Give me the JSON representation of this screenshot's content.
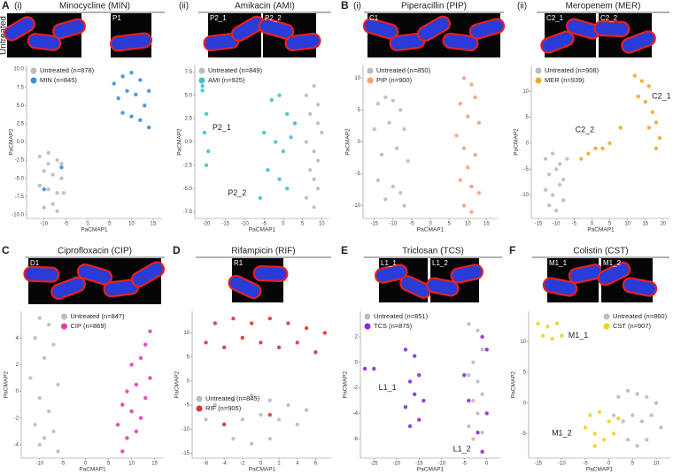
{
  "chart_data": [
    {
      "type": "scatter",
      "label": "A",
      "sublabel": "(i)",
      "title": "Minocycline (MIN)",
      "row_label": "Untreated",
      "images": [
        null,
        "P1"
      ],
      "xlabel": "PaCMAP1",
      "ylabel": "PaCMAP2",
      "legend": "upper left",
      "xlim": [
        -14,
        17
      ],
      "ylim": [
        -10.5,
        10.5
      ],
      "xticks": [
        -10,
        -5,
        0,
        5,
        10,
        15
      ],
      "yticks": [
        {
          "value": 10,
          "label": "10.0"
        },
        7.5,
        {
          "value": 5,
          "label": "5.0"
        },
        2.5,
        {
          "value": 0,
          "label": "0.0"
        },
        -2.5,
        {
          "value": -5,
          "label": "-5.0"
        },
        -7.5,
        {
          "value": -10,
          "label": "-10.0"
        }
      ],
      "series": [
        {
          "name": "Untreated (n=878)",
          "color": "#bdbdbd",
          "x": [
            -11,
            -9,
            -7,
            -6,
            -10,
            -8,
            -6,
            -11,
            -9,
            -7,
            -5.5,
            -8,
            -10,
            -7,
            -9
          ],
          "y": [
            -2,
            -1.5,
            -2.5,
            -3,
            -4,
            -4.5,
            -5,
            -6,
            -6.5,
            -7,
            -7,
            -8.5,
            -9,
            -9.5,
            -3
          ]
        },
        {
          "name": "MIN (n=845)",
          "color": "#3a8fde",
          "x": [
            6,
            8,
            10,
            12,
            14,
            7,
            9,
            11,
            13,
            8,
            10,
            12,
            14,
            -10,
            -6
          ],
          "y": [
            8,
            9,
            9.5,
            8.5,
            7,
            6,
            7,
            6.5,
            5,
            4,
            3.5,
            3,
            2,
            -6.5,
            -3.5
          ]
        }
      ]
    },
    {
      "type": "scatter",
      "sublabel": "(ii)",
      "title": "Amikacin (AMI)",
      "images": [
        "P2_1",
        "P2_2"
      ],
      "xlabel": "PaCMAP1",
      "ylabel": "PaCMAP2",
      "legend": "upper left",
      "xlim": [
        -23,
        12
      ],
      "ylim": [
        -8.2,
        8.2
      ],
      "xticks": [
        -20,
        -15,
        -10,
        -5,
        0,
        5,
        10
      ],
      "yticks": [
        7.5,
        {
          "value": 5,
          "label": "5.0"
        },
        2.5,
        {
          "value": 0,
          "label": "0.0"
        },
        -2.5,
        {
          "value": -5,
          "label": "-5.0"
        },
        -7.5
      ],
      "annotations": [
        {
          "text": "P2_1",
          "x": -16,
          "y": 1.5
        },
        {
          "text": "P2_2",
          "x": -12,
          "y": -5.5
        }
      ],
      "series": [
        {
          "name": "Untreated (n=849)",
          "color": "#bdbdbd",
          "x": [
            6,
            8,
            9,
            7,
            9,
            10,
            6,
            8,
            9,
            7,
            8,
            9,
            6,
            8,
            3
          ],
          "y": [
            5,
            6,
            4,
            3,
            2,
            1,
            0,
            -1,
            -2,
            -3,
            -4,
            -5,
            -6,
            -7,
            2
          ]
        },
        {
          "name": "AMI (n=925)",
          "color": "#3cc4cc",
          "x": [
            -21,
            -20,
            -20.5,
            -19.5,
            -20,
            -21,
            -3,
            -1,
            1,
            3,
            -5,
            -2,
            0,
            2,
            -4,
            -1,
            1,
            -6
          ],
          "y": [
            5.5,
            3,
            1,
            -1,
            -2.5,
            6,
            4.5,
            5,
            3,
            2,
            1,
            0,
            -1,
            0.5,
            -3,
            -4,
            -5,
            -6
          ]
        }
      ]
    },
    {
      "type": "scatter",
      "label": "B",
      "sublabel": "(i)",
      "title": "Piperacillin (PIP)",
      "images": [
        "C1"
      ],
      "xlabel": "PaCMAP1",
      "ylabel": "PaCMAP2",
      "legend": "upper left",
      "xlim": [
        -18,
        18
      ],
      "ylim": [
        -12,
        12
      ],
      "xticks": [
        -15,
        -10,
        -5,
        0,
        5,
        10,
        15
      ],
      "yticks": [
        10,
        5,
        0,
        -5,
        -10
      ],
      "series": [
        {
          "name": "Untreated (n=850)",
          "color": "#bdbdbd",
          "x": [
            -14,
            -12,
            -10,
            -8,
            -15,
            -11,
            -7,
            -13,
            -9,
            -6,
            -14,
            -10,
            -8,
            -12,
            -7
          ],
          "y": [
            6,
            7,
            6.5,
            5,
            2,
            3,
            2,
            -2,
            -1,
            -3,
            -6,
            -7,
            -8,
            -9,
            -10
          ]
        },
        {
          "name": "PIP (n=900)",
          "color": "#f2a07a",
          "x": [
            9,
            11,
            12,
            8,
            10,
            13,
            7,
            9,
            12,
            10,
            8,
            11,
            13,
            9,
            11
          ],
          "y": [
            10,
            9,
            7,
            6,
            4,
            3,
            1,
            -1,
            -2,
            -4,
            -6,
            -7,
            -8,
            -10,
            -11
          ]
        }
      ]
    },
    {
      "type": "scatter",
      "sublabel": "(ii)",
      "title": "Meropenem (MER)",
      "images": [
        "C2_1",
        "C2_2"
      ],
      "xlabel": "PaCMAP1",
      "ylabel": "PaCMAP2",
      "legend": "upper left",
      "xlim": [
        -17,
        22
      ],
      "ylim": [
        -14.5,
        15
      ],
      "xticks": [
        -15,
        -10,
        -5,
        0,
        5,
        10,
        15,
        20
      ],
      "yticks": [
        10,
        5,
        0,
        -5,
        -10
      ],
      "annotations": [
        {
          "text": "C2_1",
          "x": 19.5,
          "y": 9
        },
        {
          "text": "C2_2",
          "x": -2,
          "y": 2.5
        }
      ],
      "series": [
        {
          "name": "Untreated (n=908)",
          "color": "#bdbdbd",
          "x": [
            -13,
            -11,
            -9,
            -12,
            -10,
            -8,
            -7,
            -13,
            -11,
            -9,
            -12,
            -10,
            -8
          ],
          "y": [
            -3,
            -2,
            -4,
            -6,
            -5,
            -7,
            -3,
            -9,
            -10,
            -8,
            -12,
            -13,
            -11
          ]
        },
        {
          "name": "MER (n=939)",
          "color": "#f0aa2c",
          "x": [
            12,
            14,
            16,
            13,
            15,
            17,
            18,
            19,
            16,
            18,
            -3,
            -1,
            1,
            3,
            5,
            8
          ],
          "y": [
            13,
            12,
            11,
            9,
            8,
            6,
            4,
            1,
            3,
            -1,
            -3,
            -2,
            -1,
            -1,
            0,
            3
          ]
        }
      ]
    },
    {
      "type": "scatter",
      "label": "C",
      "title": "Ciprofloxacin (CIP)",
      "images": [
        "D1"
      ],
      "xlabel": "PaCMAP1",
      "ylabel": "PaCMAP2",
      "legend": "upper center",
      "xlim": [
        -14,
        17
      ],
      "ylim": [
        -5,
        6
      ],
      "xticks": [
        -10,
        -5,
        0,
        5,
        10,
        15
      ],
      "yticks": [
        4,
        2,
        0,
        -2,
        -4
      ],
      "series": [
        {
          "name": "Untreated (n=847)",
          "color": "#bdbdbd",
          "x": [
            -10,
            -8,
            -11,
            -7,
            -9,
            -12,
            -6,
            -10,
            -8,
            -11,
            -7,
            -9,
            -6,
            -10
          ],
          "y": [
            5.5,
            5,
            4,
            3.5,
            2.5,
            1,
            0.5,
            -0.5,
            -1.5,
            -2.5,
            -3,
            -3.5,
            -4.5,
            -4
          ]
        },
        {
          "name": "CIP (n=869)",
          "color": "#e63cae",
          "x": [
            14,
            13,
            12,
            10,
            14,
            11,
            9,
            13,
            8,
            10,
            12,
            7,
            9,
            11,
            8
          ],
          "y": [
            4.5,
            3.5,
            2.5,
            2,
            1,
            0.5,
            0,
            -0.5,
            -1,
            -1.5,
            -2,
            -2.5,
            -3.5,
            -3,
            -4.5
          ]
        }
      ]
    },
    {
      "type": "scatter",
      "label": "D",
      "title": "Rifampicin (RIF)",
      "images": [
        "R1"
      ],
      "xlabel": "PaCMAP1",
      "ylabel": "PaCMAP2",
      "legend": "center left",
      "xlim": [
        -7.5,
        7.8
      ],
      "ylim": [
        -16,
        14.5
      ],
      "xticks": [
        -6,
        -4,
        -2,
        0,
        2,
        4,
        6
      ],
      "yticks": [
        10,
        5,
        0,
        -5,
        -10,
        -15
      ],
      "series": [
        {
          "name": "Untreated (n=845)",
          "color": "#bdbdbd",
          "x": [
            -5,
            -3,
            -1,
            1,
            3,
            5,
            -6,
            -4,
            -2,
            0,
            2,
            4,
            -3,
            -1,
            1
          ],
          "y": [
            -5,
            -4,
            -3,
            -4,
            -5,
            -6,
            -8,
            -9,
            -8,
            -7,
            -8,
            -9,
            -12,
            -13,
            -12
          ]
        },
        {
          "name": "RIF (n=905)",
          "color": "#e23232",
          "x": [
            -5,
            -3,
            -1,
            1,
            3,
            5,
            7,
            -6,
            -4,
            -2,
            0,
            2,
            4,
            6,
            -4,
            1
          ],
          "y": [
            12,
            13,
            12,
            13,
            12,
            11,
            10,
            8,
            7,
            9,
            8,
            7,
            8,
            6,
            -9,
            -7
          ]
        }
      ]
    },
    {
      "type": "scatter",
      "label": "E",
      "title": "Triclosan (TCS)",
      "images": [
        "L1_1",
        "L1_2"
      ],
      "xlabel": "PaCMAP1",
      "ylabel": "PaCMAP2",
      "legend": "upper left",
      "xlim": [
        -28,
        3
      ],
      "ylim": [
        -7.5,
        4
      ],
      "xticks": [
        -25,
        -20,
        -15,
        -10,
        -5,
        0
      ],
      "yticks": [
        2,
        0,
        -2,
        -4,
        -6
      ],
      "annotations": [
        {
          "text": "L1_1",
          "x": -22,
          "y": -2
        },
        {
          "text": "L1_2",
          "x": -5.5,
          "y": -6.8
        }
      ],
      "series": [
        {
          "name": "Untreated (n=851)",
          "color": "#bdbdbd",
          "x": [
            -4,
            -2,
            -1,
            -3,
            -4,
            -2,
            -1,
            -3,
            -2,
            -4,
            -1,
            -3
          ],
          "y": [
            3,
            2.5,
            1,
            0,
            -1,
            -1.5,
            -2.5,
            -3,
            -4,
            -5,
            -5.5,
            -6
          ]
        },
        {
          "name": "TCS (n=875)",
          "color": "#8a2be2",
          "x": [
            -18,
            -16,
            -15,
            -17,
            -16,
            -14,
            -18,
            -15,
            -17,
            -1,
            0,
            -5,
            -4,
            0,
            -2,
            -1,
            -27,
            -25
          ],
          "y": [
            1,
            0.5,
            -1,
            -1.5,
            -2.5,
            -3,
            -3.5,
            -4.5,
            -5,
            2,
            1,
            -1,
            -3,
            -4,
            -5.5,
            -7,
            -0.5,
            -0.5
          ]
        }
      ]
    },
    {
      "type": "scatter",
      "label": "F",
      "title": "Colistin (CST)",
      "images": [
        "M1_1",
        "M1_2"
      ],
      "xlabel": "PaCMAP1",
      "ylabel": "PaCMAP2",
      "legend": "upper right",
      "xlim": [
        -17,
        13
      ],
      "ylim": [
        -9,
        15
      ],
      "xticks": [
        -15,
        -10,
        -5,
        0,
        5,
        10
      ],
      "yticks": [
        10,
        5,
        0,
        -5
      ],
      "annotations": [
        {
          "text": "M1_1",
          "x": -6.5,
          "y": 11
        },
        {
          "text": "M1_2",
          "x": -10,
          "y": -5
        }
      ],
      "series": [
        {
          "name": "Untreated (n=860)",
          "color": "#bdbdbd",
          "x": [
            2,
            4,
            6,
            8,
            10,
            1,
            3,
            5,
            7,
            9,
            11,
            4,
            6,
            8
          ],
          "y": [
            1,
            2,
            1.5,
            1,
            0,
            -2,
            -3,
            -2,
            -3,
            -2,
            -4,
            -6,
            -7,
            -6
          ]
        },
        {
          "name": "CST (n=907)",
          "color": "#f0d21e",
          "x": [
            -15,
            -13,
            -11,
            -14,
            -12,
            -10,
            -4,
            -2,
            0,
            2,
            -5,
            -3,
            -1,
            1,
            -3
          ],
          "y": [
            13,
            12.5,
            13,
            11,
            10.5,
            11,
            -2,
            -1.5,
            -3,
            -2.5,
            -4,
            -5,
            -6,
            -5,
            -7
          ]
        }
      ]
    }
  ]
}
